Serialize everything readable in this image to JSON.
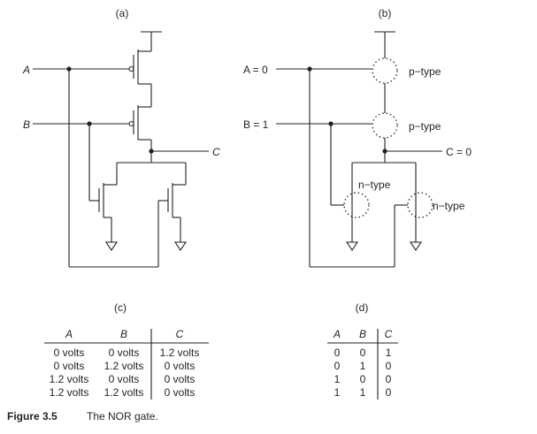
{
  "figure": {
    "number": "Figure 3.5",
    "title": "The NOR gate."
  },
  "panels": {
    "a": {
      "label": "(a)",
      "input_a": "A",
      "input_b": "B",
      "output": "C"
    },
    "b": {
      "label": "(b)",
      "input_a": "A = 0",
      "input_b": "B = 1",
      "output": "C = 0",
      "p1_type": "p−type",
      "p2_type": "p−type",
      "n1_type": "n−type",
      "n2_type": "n−type"
    },
    "c": {
      "label": "(c)",
      "headers": [
        "A",
        "B",
        "C"
      ],
      "rows": [
        [
          "0 volts",
          "0 volts",
          "1.2 volts"
        ],
        [
          "0 volts",
          "1.2 volts",
          "0 volts"
        ],
        [
          "1.2 volts",
          "0 volts",
          "0 volts"
        ],
        [
          "1.2 volts",
          "1.2 volts",
          "0 volts"
        ]
      ]
    },
    "d": {
      "label": "(d)",
      "headers": [
        "A",
        "B",
        "C"
      ],
      "rows": [
        [
          "0",
          "0",
          "1"
        ],
        [
          "0",
          "1",
          "0"
        ],
        [
          "1",
          "0",
          "0"
        ],
        [
          "1",
          "1",
          "0"
        ]
      ]
    }
  }
}
